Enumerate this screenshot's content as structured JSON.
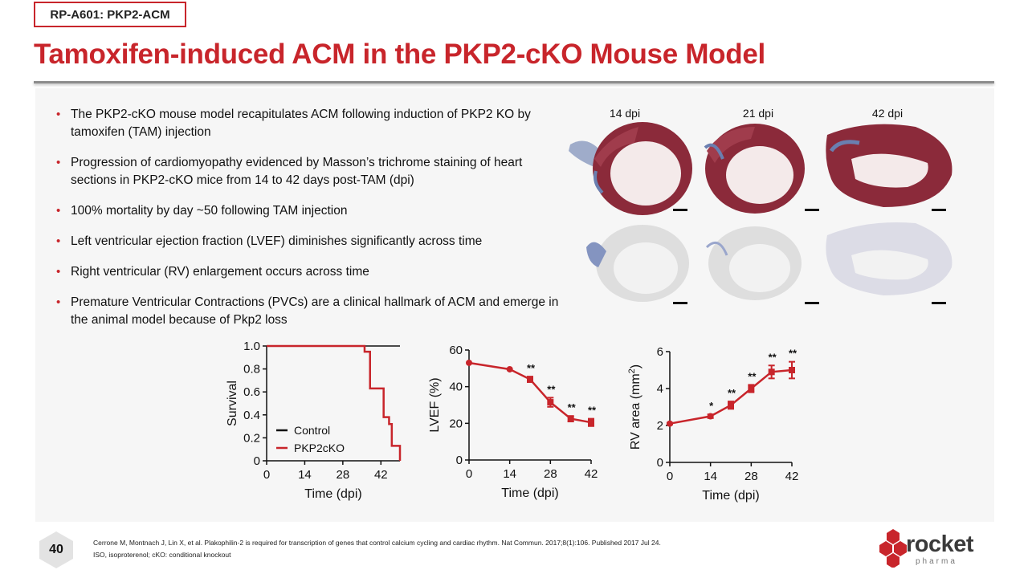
{
  "header": {
    "tag": "RP-A601: PKP2-ACM",
    "title": "Tamoxifen-induced ACM in the PKP2-cKO Mouse Model"
  },
  "bullets": [
    "The PKP2-cKO mouse model recapitulates ACM following induction of PKP2 KO by tamoxifen (TAM) injection",
    "Progression of cardiomyopathy evidenced by Masson’s trichrome staining of heart sections in PKP2-cKO mice from 14 to 42 days post-TAM (dpi)",
    "100% mortality by day ~50 following TAM injection",
    "Left ventricular ejection fraction (LVEF) diminishes significantly across time",
    "Right ventricular (RV) enlargement occurs across time",
    "Premature Ventricular Contractions (PVCs) are a clinical hallmark of ACM and emerge in the animal model because of Pkp2 loss"
  ],
  "histology": {
    "labels": [
      "14 dpi",
      "21 dpi",
      "42 dpi"
    ],
    "colors": {
      "trichrome": "#8b2a3a",
      "fibrosis": "#6a7fb0",
      "pale": "#c9c9c9"
    }
  },
  "chart_data": [
    {
      "type": "line",
      "subtype": "survival-step",
      "xlabel": "Time (dpi)",
      "ylabel": "Survival",
      "xticks": [
        "0",
        "14",
        "28",
        "42"
      ],
      "yticks": [
        "0",
        "0.2",
        "0.4",
        "0.6",
        "0.8",
        "1.0"
      ],
      "xlim": [
        0,
        49
      ],
      "ylim": [
        0,
        1.0
      ],
      "series": [
        {
          "name": "Control",
          "color": "#111111",
          "x": [
            0,
            49
          ],
          "y": [
            1.0,
            1.0
          ]
        },
        {
          "name": "PKP2cKO",
          "color": "#c8252b",
          "x": [
            0,
            36,
            36,
            38,
            38,
            43,
            43,
            45,
            45,
            46,
            46,
            47,
            47,
            49,
            49
          ],
          "y": [
            1.0,
            1.0,
            0.95,
            0.95,
            0.63,
            0.63,
            0.38,
            0.38,
            0.32,
            0.32,
            0.13,
            0.13,
            0.13,
            0.13,
            0
          ]
        }
      ],
      "legend_position": "bottom-left"
    },
    {
      "type": "line",
      "xlabel": "Time (dpi)",
      "ylabel": "LVEF (%)",
      "xticks": [
        "0",
        "14",
        "28",
        "42"
      ],
      "yticks": [
        "0",
        "20",
        "40",
        "60"
      ],
      "xlim": [
        0,
        42
      ],
      "ylim": [
        0,
        60
      ],
      "color": "#c8252b",
      "x": [
        0,
        14,
        21,
        28,
        35,
        42
      ],
      "y": [
        53,
        49.5,
        44,
        31.5,
        22.5,
        20.5
      ],
      "err": [
        0,
        0,
        1.5,
        2.5,
        1.5,
        2
      ],
      "annotations": [
        "",
        "",
        "**",
        "**",
        "**",
        "**"
      ]
    },
    {
      "type": "line",
      "xlabel": "Time (dpi)",
      "ylabel": "RV area (mm",
      "ylabel_sup": "2",
      "ylabel_end": ")",
      "xticks": [
        "0",
        "14",
        "28",
        "42"
      ],
      "yticks": [
        "0",
        "2",
        "4",
        "6"
      ],
      "xlim": [
        0,
        42
      ],
      "ylim": [
        0,
        6
      ],
      "color": "#c8252b",
      "x": [
        0,
        14,
        21,
        28,
        35,
        42
      ],
      "y": [
        2.1,
        2.5,
        3.1,
        4.0,
        4.9,
        5.0
      ],
      "err": [
        0.05,
        0.1,
        0.2,
        0.2,
        0.35,
        0.45
      ],
      "annotations": [
        "",
        "*",
        "**",
        "**",
        "**",
        "**"
      ]
    }
  ],
  "footer": {
    "page": "40",
    "reference": "Cerrone M, Montnach J, Lin X, et al. Plakophilin-2 is required for transcription of genes that control calcium cycling and cardiac rhythm. Nat Commun. 2017;8(1):106. Published 2017 Jul 24.",
    "abbrev": "ISO, isoproterenol; cKO: conditional knockout",
    "logo_word": "rocket",
    "logo_sub": "pharma",
    "logo_color": "#c8252b"
  }
}
